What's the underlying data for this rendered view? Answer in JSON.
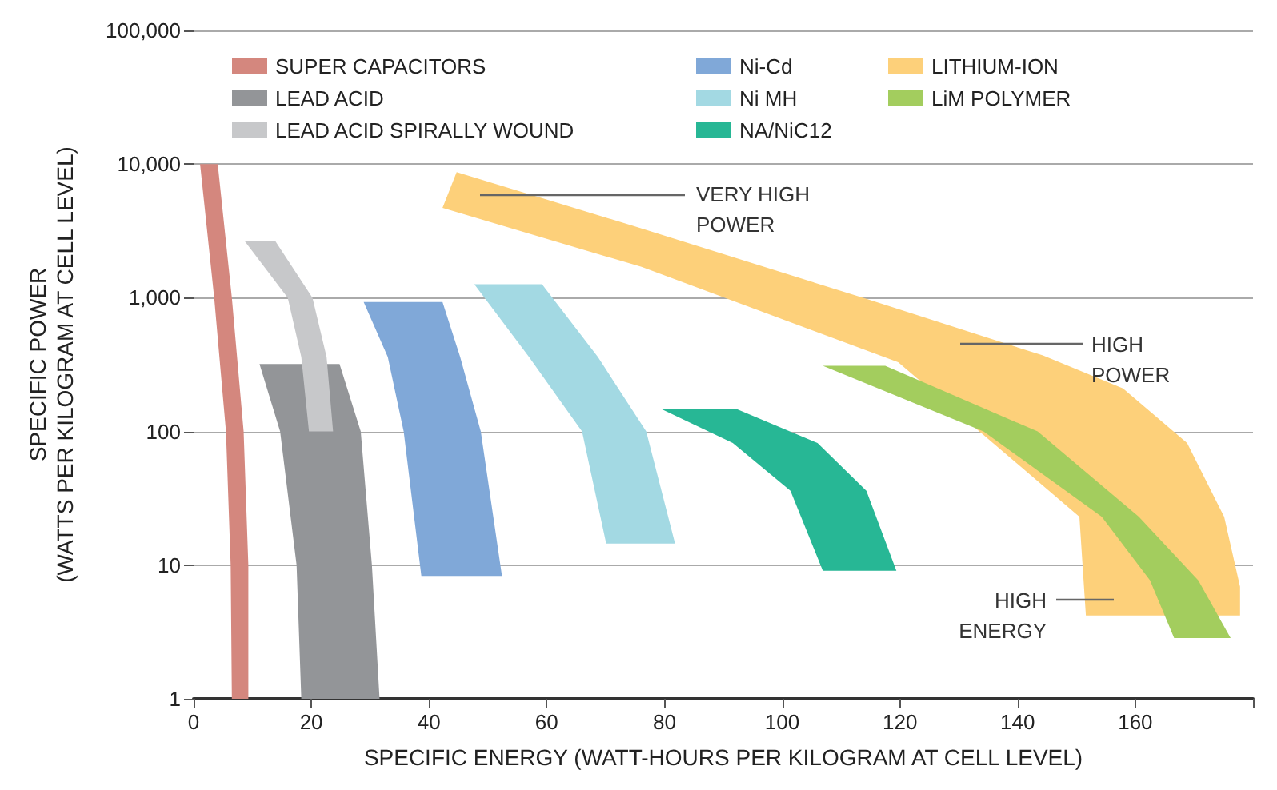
{
  "chart_data": {
    "type": "area",
    "xlabel": "SPECIFIC ENERGY (WATT-HOURS PER KILOGRAM AT CELL LEVEL)",
    "ylabel": "SPECIFIC POWER\n(WATTS PER KILOGRAM AT CELL LEVEL)",
    "log": "y",
    "grid": "y",
    "legend": "top left",
    "xlim": [
      0,
      180
    ],
    "xticks": [
      0,
      20,
      40,
      60,
      80,
      100,
      120,
      140,
      160,
      {
        "value": 180,
        "label": null
      }
    ],
    "ylim": [
      1,
      100000
    ],
    "yticks": [
      1,
      10,
      100,
      {
        "value": 1000,
        "label": "1,000"
      },
      {
        "value": 10000,
        "label": "10,000"
      },
      {
        "value": 100000,
        "label": "100,000"
      }
    ],
    "series": [
      {
        "name": "SUPER CAPACITORS",
        "color": "#d4877e",
        "x": [
          1.1,
          4.1,
          6.5,
          8.5,
          9.3,
          9.3,
          6.5,
          6.3,
          5.5,
          3.5
        ],
        "values": [
          10000,
          10000,
          1000,
          100,
          10,
          1,
          1,
          10,
          100,
          1000
        ]
      },
      {
        "name": "LEAD ACID",
        "color": "#939598",
        "x": [
          11.2,
          24.8,
          28.4,
          30.3,
          31.6,
          18.3,
          17.5,
          14.7
        ],
        "values": [
          320,
          320,
          100,
          10,
          1,
          1,
          10,
          100
        ]
      },
      {
        "name": "LEAD ACID SPIRALLY WOUND",
        "color": "#c7c8ca",
        "x": [
          8.7,
          13.9,
          20.2,
          22.6,
          23.7,
          19.6,
          18.3,
          16
        ],
        "values": [
          2650,
          2650,
          1000,
          360,
          100,
          100,
          360,
          1000
        ]
      },
      {
        "name": "Ni-Cd",
        "color": "#80a8d8",
        "x": [
          28.9,
          42.3,
          45.3,
          48.8,
          52.4,
          38.7,
          35.7,
          33
        ],
        "values": [
          930,
          930,
          360,
          100,
          8.3,
          8.3,
          100,
          360
        ]
      },
      {
        "name": "Ni MH",
        "color": "#a3d9e3",
        "x": [
          47.7,
          59.2,
          68.7,
          76.9,
          81.8,
          70.1,
          66,
          57
        ],
        "values": [
          1260,
          1260,
          360,
          100,
          14.5,
          14.5,
          100,
          360
        ]
      },
      {
        "name": "NA/NiC12",
        "color": "#27b795",
        "x": [
          79.6,
          92.4,
          106,
          114.3,
          119.4,
          106.9,
          101.4,
          91.6
        ],
        "values": [
          146,
          146,
          82,
          36,
          9.1,
          9.1,
          36,
          82
        ]
      },
      {
        "name": "LITHIUM-ION",
        "color": "#fdd07a",
        "x": [
          44.7,
          76.1,
          114.3,
          144.3,
          157.9,
          168.8,
          175.1,
          177.8,
          177.8,
          151.6,
          150.5,
          147,
          139.6,
          119.7,
          76.1,
          42.3
        ],
        "values": [
          8700,
          3300,
          980,
          370,
          210,
          82,
          23,
          6.9,
          4.2,
          4.2,
          23,
          null,
          null,
          330,
          1700,
          4700
        ]
      },
      {
        "name": "LiM POLYMER",
        "color": "#a3cd5e",
        "x": [
          106.9,
          117.5,
          143.4,
          160.6,
          170.7,
          176.2,
          166.6,
          162.5,
          154.3,
          134.2
        ],
        "values": [
          310,
          310,
          100,
          23,
          7.7,
          2.85,
          2.85,
          7.7,
          23,
          100
        ]
      }
    ],
    "annotations": [
      "VERY HIGH\nPOWER",
      "HIGH\nPOWER",
      "HIGH\nENERGY"
    ]
  }
}
